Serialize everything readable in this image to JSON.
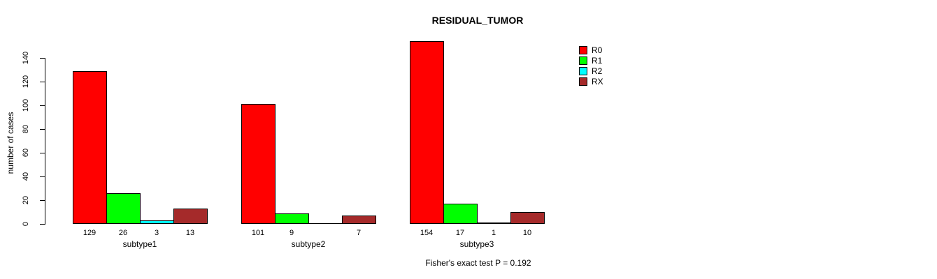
{
  "chart_data": {
    "type": "bar",
    "title": "RESIDUAL_TUMOR",
    "xlabel": "",
    "ylabel": "number of cases",
    "categories": [
      "subtype1",
      "subtype2",
      "subtype3"
    ],
    "series": [
      {
        "name": "R0",
        "color": "#FF0000",
        "values": [
          129,
          101,
          154
        ]
      },
      {
        "name": "R1",
        "color": "#00FF00",
        "values": [
          26,
          9,
          17
        ]
      },
      {
        "name": "R2",
        "color": "#00FFFF",
        "values": [
          3,
          0,
          1
        ]
      },
      {
        "name": "RX",
        "color": "#A52A2A",
        "values": [
          13,
          7,
          10
        ]
      }
    ],
    "bar_value_labels": [
      [
        "129",
        "26",
        "3",
        "13"
      ],
      [
        "101",
        "9",
        "",
        "7"
      ],
      [
        "154",
        "17",
        "1",
        "10"
      ]
    ],
    "ylim": [
      0,
      140
    ],
    "yticks": [
      0,
      20,
      40,
      60,
      80,
      100,
      120,
      140
    ],
    "grid": false,
    "legend_position": "top-right",
    "legend_entries": [
      "R0",
      "R1",
      "R2",
      "RX"
    ],
    "annotation": "Fisher's exact test P = 0.192"
  }
}
